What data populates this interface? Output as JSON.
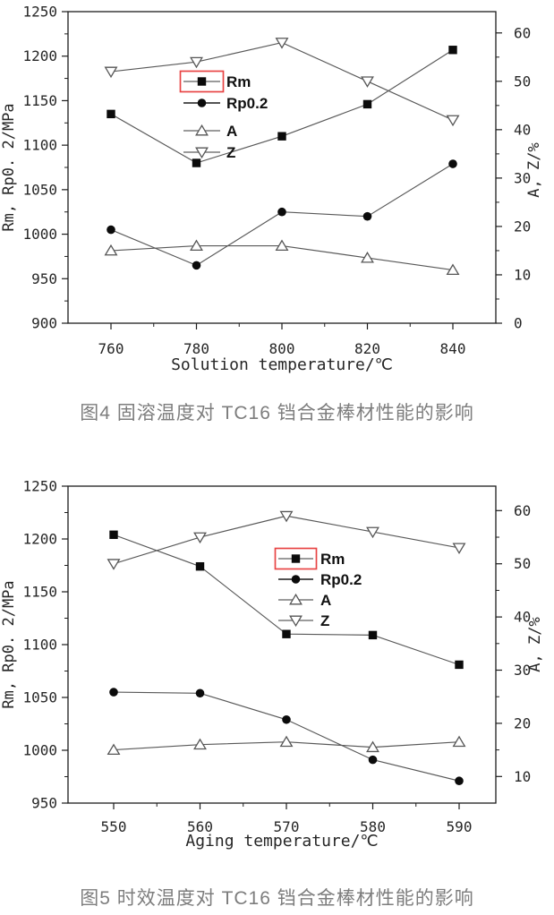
{
  "colors": {
    "frame": "#1c1c1c",
    "tick_text": "#262626",
    "series_line": "#585858",
    "legend_sample_line": "#7a7a7a",
    "filled_marker": "#0b0b0b",
    "open_marker_fill": "#ffffff",
    "open_marker_stroke": "#565656",
    "highlight_box": "#e84545",
    "caption_text": "#7d7d7d"
  },
  "chart_data": [
    {
      "type": "line",
      "title": "",
      "xlabel": "Solution temperature/℃",
      "ylabel_left": "Rm, Rp0. 2/MPa",
      "ylabel_right": "A, Z/%",
      "x": [
        760,
        780,
        800,
        820,
        840
      ],
      "ylim_left": [
        900,
        1250
      ],
      "yticks_left": [
        900,
        950,
        1000,
        1050,
        1100,
        1150,
        1200,
        1250
      ],
      "y_left_minor_step": 25,
      "ylim_right": [
        0,
        64.4
      ],
      "yticks_right": [
        0,
        10,
        20,
        30,
        40,
        50,
        60
      ],
      "y_right_minor_step": 5,
      "grid": false,
      "legend_position": "upper-middle",
      "series": [
        {
          "name": "Rm",
          "axis": "left",
          "marker": "filled-square",
          "values": [
            1135,
            1080,
            1110,
            1146,
            1207
          ]
        },
        {
          "name": "Rp0.2",
          "axis": "left",
          "marker": "filled-circle",
          "values": [
            1005,
            965,
            1025,
            1020,
            1079
          ]
        },
        {
          "name": "A",
          "axis": "right",
          "marker": "open-triangle-up",
          "values": [
            15,
            16,
            16,
            13.5,
            11
          ]
        },
        {
          "name": "Z",
          "axis": "right",
          "marker": "open-triangle-down",
          "values": [
            52,
            54,
            58,
            50,
            42
          ]
        }
      ],
      "legend_highlighted": "Rm",
      "caption": "图4  固溶温度对 TC16 铛合金棒材性能的影响"
    },
    {
      "type": "line",
      "title": "",
      "xlabel": "Aging temperature/℃",
      "ylabel_left": "Rm, Rp0. 2/MPa",
      "ylabel_right": "A, Z/%",
      "x": [
        550,
        560,
        570,
        580,
        590
      ],
      "ylim_left": [
        950,
        1250
      ],
      "yticks_left": [
        950,
        1000,
        1050,
        1100,
        1150,
        1200,
        1250
      ],
      "y_left_minor_step": 25,
      "ylim_right": [
        5,
        64.6
      ],
      "yticks_right": [
        10,
        20,
        30,
        40,
        50,
        60
      ],
      "y_right_minor_step": 5,
      "grid": false,
      "legend_position": "middle",
      "series": [
        {
          "name": "Rm",
          "axis": "left",
          "marker": "filled-square",
          "values": [
            1204,
            1174,
            1110,
            1109,
            1081
          ]
        },
        {
          "name": "Rp0.2",
          "axis": "left",
          "marker": "filled-circle",
          "values": [
            1055,
            1054,
            1029,
            991,
            971
          ]
        },
        {
          "name": "A",
          "axis": "right",
          "marker": "open-triangle-up",
          "values": [
            15,
            16,
            16.5,
            15.5,
            16.5
          ]
        },
        {
          "name": "Z",
          "axis": "right",
          "marker": "open-triangle-down",
          "values": [
            50,
            55,
            59,
            56,
            53
          ]
        }
      ],
      "legend_highlighted": "Rm",
      "caption": "图5  时效温度对 TC16 铛合金棒材性能的影响"
    }
  ]
}
